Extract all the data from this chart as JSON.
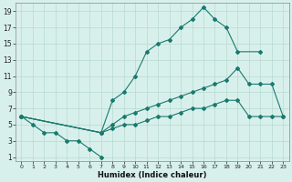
{
  "title": "",
  "xlabel": "Humidex (Indice chaleur)",
  "bg_color": "#d8f0ec",
  "line_color": "#1a7a6e",
  "grid_color": "#b8d8d2",
  "xlim": [
    -0.5,
    23.5
  ],
  "ylim": [
    0.5,
    20
  ],
  "xticks": [
    0,
    1,
    2,
    3,
    4,
    5,
    6,
    7,
    8,
    9,
    10,
    11,
    12,
    13,
    14,
    15,
    16,
    17,
    18,
    19,
    20,
    21,
    22,
    23
  ],
  "yticks": [
    1,
    3,
    5,
    7,
    9,
    11,
    13,
    15,
    17,
    19
  ],
  "line1_x": [
    0,
    1,
    2,
    3,
    4,
    5,
    6,
    7
  ],
  "line1_y": [
    6,
    5,
    4,
    4,
    3,
    3,
    2,
    1
  ],
  "line2_x": [
    0,
    7,
    8,
    9,
    10,
    11,
    12,
    13,
    14,
    15,
    16,
    17,
    18,
    19,
    21
  ],
  "line2_y": [
    6,
    4,
    8,
    9,
    11,
    14,
    15,
    15.5,
    17,
    18,
    19.5,
    18,
    17,
    14,
    14
  ],
  "line3_x": [
    0,
    7,
    8,
    9,
    10,
    11,
    12,
    13,
    14,
    15,
    16,
    17,
    18,
    19,
    20,
    21,
    22,
    23
  ],
  "line3_y": [
    6,
    4,
    5,
    6,
    6.5,
    7,
    7.5,
    8,
    8.5,
    9,
    9.5,
    10,
    10.5,
    12,
    10,
    10,
    10,
    6
  ],
  "line4_x": [
    0,
    7,
    8,
    9,
    10,
    11,
    12,
    13,
    14,
    15,
    16,
    17,
    18,
    19,
    20,
    21,
    22,
    23
  ],
  "line4_y": [
    6,
    4,
    4.5,
    5,
    5,
    5.5,
    6,
    6,
    6.5,
    7,
    7,
    7.5,
    8,
    8,
    6,
    6,
    6,
    6
  ]
}
